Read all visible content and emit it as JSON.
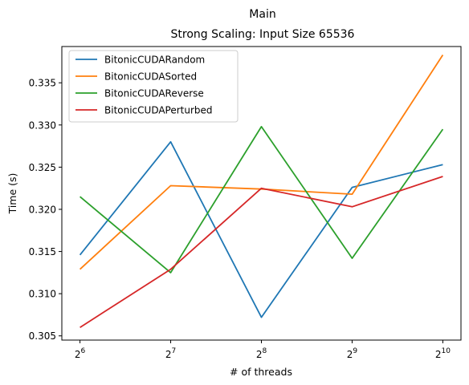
{
  "chart_data": {
    "type": "line",
    "title": "Main",
    "subtitle": "Strong Scaling: Input Size 65536",
    "xlabel": "# of threads",
    "ylabel": "Time (s)",
    "x": [
      6,
      7,
      8,
      9,
      10
    ],
    "x_tick_base": "2",
    "x_tick_exponents": [
      "6",
      "7",
      "8",
      "9",
      "10"
    ],
    "y_ticks": [
      "0.305",
      "0.310",
      "0.315",
      "0.320",
      "0.325",
      "0.330",
      "0.335"
    ],
    "ylim": [
      0.3045,
      0.3393
    ],
    "grid": false,
    "legend_position": "top-left",
    "series": [
      {
        "name": "BitonicCUDARandom",
        "color": "#1f77b4",
        "values": [
          0.3146,
          0.328,
          0.3072,
          0.3226,
          0.3253
        ]
      },
      {
        "name": "BitonicCUDASorted",
        "color": "#ff7f0e",
        "values": [
          0.3129,
          0.3228,
          0.3224,
          0.3218,
          0.3383
        ]
      },
      {
        "name": "BitonicCUDAReverse",
        "color": "#2ca02c",
        "values": [
          0.3215,
          0.3125,
          0.3298,
          0.3142,
          0.3295
        ]
      },
      {
        "name": "BitonicCUDAPerturbed",
        "color": "#d62728",
        "values": [
          0.306,
          0.3129,
          0.3225,
          0.3203,
          0.3239
        ]
      }
    ]
  }
}
